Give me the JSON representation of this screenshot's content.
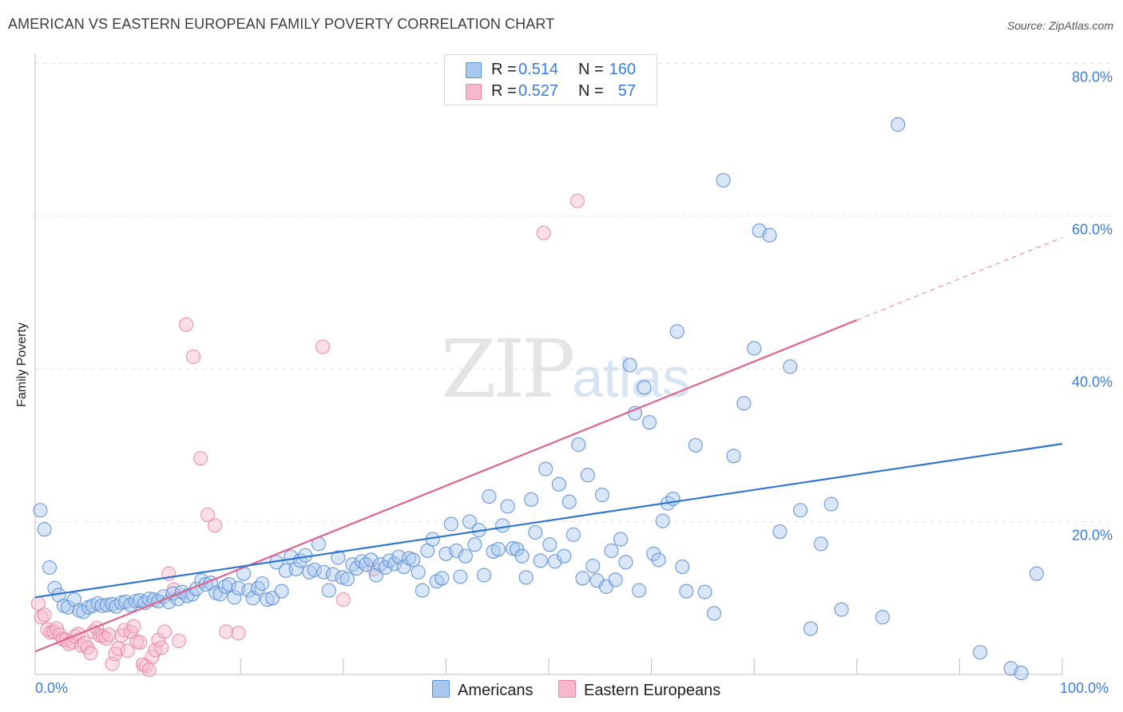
{
  "header": {
    "title": "AMERICAN VS EASTERN EUROPEAN FAMILY POVERTY CORRELATION CHART",
    "source": "Source: ZipAtlas.com"
  },
  "watermark": {
    "zip": "ZIP",
    "atlas": "atlas"
  },
  "stats": {
    "americans": {
      "r_label": "R =",
      "r_value": "0.514",
      "n_label": "N =",
      "n_value": "160"
    },
    "eastern": {
      "r_label": "R =",
      "r_value": "0.527",
      "n_label": "N =",
      "n_value": "57"
    }
  },
  "legend": {
    "americans": "Americans",
    "eastern": "Eastern Europeans"
  },
  "axis": {
    "y_title": "Family Poverty",
    "x_ticks": [
      "0.0%",
      "100.0%"
    ],
    "y_ticks": [
      "20.0%",
      "40.0%",
      "60.0%",
      "80.0%"
    ]
  },
  "colors": {
    "americans_fill": "#a9c8ef",
    "americans_stroke": "#5b8fd6",
    "americans_line": "#2f73d4",
    "eastern_fill": "#f6b8ca",
    "eastern_stroke": "#e888a6",
    "eastern_line": "#e0648f",
    "tick_text": "#3b7dd8",
    "grid": "#e2e2e2"
  },
  "chart_data": {
    "type": "scatter",
    "title": "AMERICAN VS EASTERN EUROPEAN FAMILY POVERTY CORRELATION CHART",
    "xlabel": "",
    "ylabel": "Family Poverty",
    "xlim": [
      0,
      100
    ],
    "ylim": [
      0,
      82
    ],
    "series": [
      {
        "name": "Americans",
        "r": 0.514,
        "n": 160,
        "trend": {
          "x": [
            0,
            100
          ],
          "y": [
            10.1,
            30.2
          ]
        },
        "points": [
          [
            0.5,
            21.5
          ],
          [
            0.9,
            19.0
          ],
          [
            1.4,
            14.0
          ],
          [
            1.9,
            11.3
          ],
          [
            2.3,
            10.4
          ],
          [
            2.8,
            9.0
          ],
          [
            3.2,
            8.8
          ],
          [
            3.8,
            9.8
          ],
          [
            4.3,
            8.4
          ],
          [
            4.7,
            8.2
          ],
          [
            5.2,
            8.8
          ],
          [
            5.6,
            9.0
          ],
          [
            6.1,
            9.3
          ],
          [
            6.5,
            9.0
          ],
          [
            7.0,
            9.1
          ],
          [
            7.5,
            9.2
          ],
          [
            7.9,
            8.9
          ],
          [
            8.4,
            9.4
          ],
          [
            8.8,
            9.5
          ],
          [
            9.3,
            9.1
          ],
          [
            9.8,
            9.6
          ],
          [
            10.2,
            9.7
          ],
          [
            10.7,
            9.4
          ],
          [
            11.1,
            9.9
          ],
          [
            11.6,
            9.8
          ],
          [
            12.0,
            9.6
          ],
          [
            12.5,
            10.2
          ],
          [
            13.0,
            9.5
          ],
          [
            13.4,
            10.6
          ],
          [
            13.9,
            9.9
          ],
          [
            14.3,
            10.8
          ],
          [
            14.8,
            10.3
          ],
          [
            15.3,
            10.5
          ],
          [
            15.7,
            11.2
          ],
          [
            16.2,
            12.3
          ],
          [
            16.6,
            11.8
          ],
          [
            17.1,
            12.0
          ],
          [
            17.6,
            10.7
          ],
          [
            18.0,
            10.5
          ],
          [
            18.5,
            11.5
          ],
          [
            18.9,
            11.8
          ],
          [
            19.4,
            10.1
          ],
          [
            19.8,
            11.3
          ],
          [
            20.3,
            13.2
          ],
          [
            20.8,
            11.0
          ],
          [
            21.2,
            10.0
          ],
          [
            21.7,
            11.3
          ],
          [
            22.1,
            11.9
          ],
          [
            22.6,
            9.8
          ],
          [
            23.1,
            10.0
          ],
          [
            23.5,
            14.7
          ],
          [
            24.0,
            10.9
          ],
          [
            24.4,
            13.6
          ],
          [
            24.9,
            15.4
          ],
          [
            25.4,
            13.8
          ],
          [
            25.8,
            14.9
          ],
          [
            26.3,
            15.6
          ],
          [
            26.7,
            13.4
          ],
          [
            27.2,
            13.7
          ],
          [
            27.6,
            17.1
          ],
          [
            28.1,
            13.4
          ],
          [
            28.6,
            11.0
          ],
          [
            29.0,
            13.1
          ],
          [
            29.5,
            15.3
          ],
          [
            29.9,
            12.7
          ],
          [
            30.4,
            12.5
          ],
          [
            30.9,
            14.4
          ],
          [
            31.3,
            13.9
          ],
          [
            31.8,
            14.8
          ],
          [
            32.2,
            14.4
          ],
          [
            32.7,
            15.0
          ],
          [
            33.2,
            13.0
          ],
          [
            33.6,
            14.4
          ],
          [
            34.1,
            14.0
          ],
          [
            34.5,
            14.9
          ],
          [
            35.0,
            14.5
          ],
          [
            35.4,
            15.4
          ],
          [
            35.9,
            14.1
          ],
          [
            36.4,
            15.2
          ],
          [
            36.8,
            15.0
          ],
          [
            37.3,
            13.4
          ],
          [
            37.7,
            11.0
          ],
          [
            38.2,
            16.2
          ],
          [
            38.7,
            17.7
          ],
          [
            39.1,
            12.2
          ],
          [
            39.6,
            12.6
          ],
          [
            40.0,
            15.8
          ],
          [
            40.5,
            19.7
          ],
          [
            41.0,
            16.2
          ],
          [
            41.4,
            12.8
          ],
          [
            41.9,
            15.5
          ],
          [
            42.3,
            20.0
          ],
          [
            42.8,
            17.0
          ],
          [
            43.2,
            18.9
          ],
          [
            43.7,
            13.0
          ],
          [
            44.2,
            23.3
          ],
          [
            44.6,
            16.1
          ],
          [
            45.1,
            16.4
          ],
          [
            45.5,
            19.5
          ],
          [
            46.0,
            22.0
          ],
          [
            46.5,
            16.5
          ],
          [
            46.9,
            16.4
          ],
          [
            47.4,
            15.5
          ],
          [
            47.8,
            12.7
          ],
          [
            48.3,
            22.9
          ],
          [
            48.7,
            18.6
          ],
          [
            49.2,
            14.9
          ],
          [
            49.7,
            26.9
          ],
          [
            50.1,
            17.0
          ],
          [
            50.6,
            14.8
          ],
          [
            51.0,
            24.9
          ],
          [
            51.5,
            15.5
          ],
          [
            52.0,
            22.6
          ],
          [
            52.4,
            18.3
          ],
          [
            52.9,
            30.1
          ],
          [
            53.3,
            12.6
          ],
          [
            53.8,
            26.1
          ],
          [
            54.3,
            14.2
          ],
          [
            54.7,
            12.3
          ],
          [
            55.2,
            23.5
          ],
          [
            55.6,
            11.5
          ],
          [
            56.1,
            16.2
          ],
          [
            56.5,
            12.4
          ],
          [
            57.0,
            17.7
          ],
          [
            57.5,
            14.7
          ],
          [
            57.9,
            40.5
          ],
          [
            58.4,
            34.2
          ],
          [
            58.8,
            11.0
          ],
          [
            59.3,
            37.6
          ],
          [
            59.8,
            33.0
          ],
          [
            60.2,
            15.8
          ],
          [
            60.7,
            15.0
          ],
          [
            61.1,
            20.1
          ],
          [
            61.6,
            22.4
          ],
          [
            62.1,
            23.0
          ],
          [
            62.5,
            44.9
          ],
          [
            63.0,
            14.1
          ],
          [
            63.4,
            10.9
          ],
          [
            64.3,
            30.0
          ],
          [
            65.2,
            10.8
          ],
          [
            66.1,
            8.0
          ],
          [
            67.0,
            64.7
          ],
          [
            68.0,
            28.6
          ],
          [
            69.0,
            35.5
          ],
          [
            70.0,
            42.7
          ],
          [
            70.5,
            58.1
          ],
          [
            71.5,
            57.5
          ],
          [
            72.5,
            18.7
          ],
          [
            73.5,
            40.3
          ],
          [
            74.5,
            21.5
          ],
          [
            75.5,
            6.0
          ],
          [
            76.5,
            17.1
          ],
          [
            77.5,
            22.3
          ],
          [
            78.5,
            8.5
          ],
          [
            82.5,
            7.5
          ],
          [
            84.0,
            72.0
          ],
          [
            92.0,
            2.9
          ],
          [
            95.0,
            0.8
          ],
          [
            96.0,
            0.2
          ],
          [
            97.5,
            13.2
          ]
        ]
      },
      {
        "name": "Eastern Europeans",
        "r": 0.527,
        "n": 57,
        "trend": {
          "x": [
            0,
            80
          ],
          "y": [
            3.0,
            46.4
          ]
        },
        "trend_dashed": {
          "x": [
            80,
            100
          ],
          "y": [
            46.4,
            57.2
          ]
        },
        "points": [
          [
            0.3,
            9.3
          ],
          [
            0.6,
            7.5
          ],
          [
            0.9,
            7.8
          ],
          [
            1.2,
            5.9
          ],
          [
            1.5,
            5.5
          ],
          [
            1.8,
            5.6
          ],
          [
            2.1,
            6.0
          ],
          [
            2.4,
            5.2
          ],
          [
            2.7,
            4.6
          ],
          [
            3.0,
            4.5
          ],
          [
            3.3,
            4.0
          ],
          [
            3.6,
            4.3
          ],
          [
            3.9,
            5.0
          ],
          [
            4.2,
            5.3
          ],
          [
            4.5,
            3.8
          ],
          [
            4.8,
            4.1
          ],
          [
            5.1,
            3.5
          ],
          [
            5.4,
            2.8
          ],
          [
            5.7,
            5.6
          ],
          [
            6.0,
            6.1
          ],
          [
            6.3,
            5.1
          ],
          [
            6.6,
            5.0
          ],
          [
            6.9,
            4.7
          ],
          [
            7.2,
            5.2
          ],
          [
            7.5,
            1.4
          ],
          [
            7.8,
            2.7
          ],
          [
            8.1,
            3.4
          ],
          [
            8.4,
            5.1
          ],
          [
            8.7,
            5.8
          ],
          [
            9.0,
            3.1
          ],
          [
            9.3,
            5.6
          ],
          [
            9.6,
            6.3
          ],
          [
            9.9,
            4.3
          ],
          [
            10.2,
            4.2
          ],
          [
            10.5,
            1.3
          ],
          [
            10.8,
            1.1
          ],
          [
            11.1,
            0.6
          ],
          [
            11.4,
            2.3
          ],
          [
            11.7,
            3.2
          ],
          [
            12.0,
            4.5
          ],
          [
            12.3,
            3.5
          ],
          [
            12.6,
            5.6
          ],
          [
            13.0,
            13.2
          ],
          [
            13.5,
            11.1
          ],
          [
            14.0,
            4.4
          ],
          [
            14.7,
            45.8
          ],
          [
            15.4,
            41.6
          ],
          [
            16.1,
            28.3
          ],
          [
            16.8,
            20.9
          ],
          [
            17.5,
            19.5
          ],
          [
            18.6,
            5.6
          ],
          [
            19.8,
            5.4
          ],
          [
            28.0,
            42.9
          ],
          [
            30.0,
            9.8
          ],
          [
            33.0,
            13.8
          ],
          [
            49.5,
            57.8
          ],
          [
            52.8,
            62.0
          ]
        ]
      }
    ]
  }
}
